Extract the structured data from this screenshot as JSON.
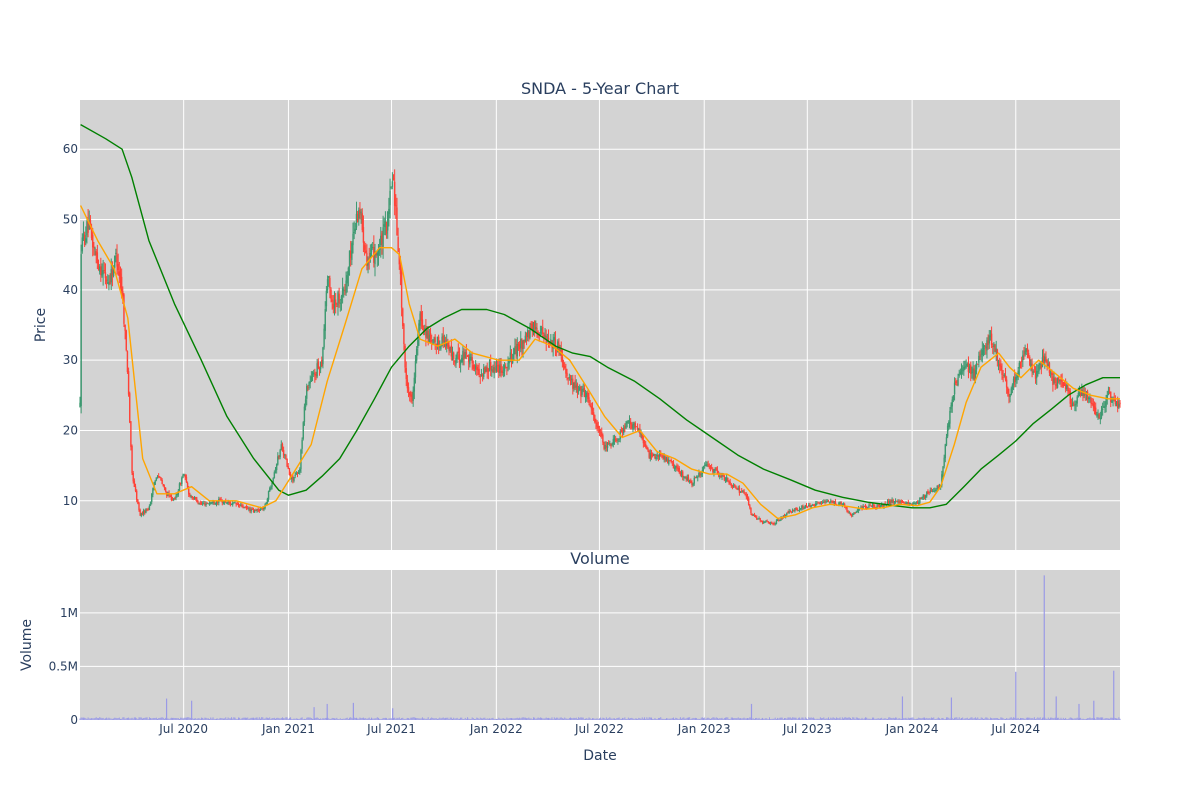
{
  "chart_data": [
    {
      "type": "candlestick",
      "title": "SNDA - 5-Year Chart",
      "ylabel": "Price",
      "ylim": [
        3,
        67
      ],
      "y_ticks": [
        10,
        20,
        30,
        40,
        50,
        60
      ],
      "grid": true,
      "background": "#d3d3d3",
      "colors": {
        "up": "#3d9970",
        "down": "#ff4136",
        "ma_short": "#ffa500",
        "ma_long": "#008000"
      },
      "x_range": [
        "2020-01-01",
        "2024-12-31"
      ],
      "price_path": [
        [
          "2020-01-02",
          46
        ],
        [
          "2020-01-15",
          49
        ],
        [
          "2020-02-01",
          44
        ],
        [
          "2020-02-20",
          41
        ],
        [
          "2020-03-05",
          45
        ],
        [
          "2020-03-15",
          40
        ],
        [
          "2020-03-25",
          28
        ],
        [
          "2020-04-01",
          14
        ],
        [
          "2020-04-15",
          8
        ],
        [
          "2020-05-01",
          9
        ],
        [
          "2020-05-15",
          14
        ],
        [
          "2020-06-01",
          11
        ],
        [
          "2020-06-15",
          10
        ],
        [
          "2020-07-01",
          14
        ],
        [
          "2020-07-10",
          11
        ],
        [
          "2020-08-01",
          9.5
        ],
        [
          "2020-09-01",
          10
        ],
        [
          "2020-10-01",
          9.5
        ],
        [
          "2020-11-01",
          8.5
        ],
        [
          "2020-11-20",
          9
        ],
        [
          "2020-12-10",
          15
        ],
        [
          "2020-12-20",
          18
        ],
        [
          "2021-01-05",
          13
        ],
        [
          "2021-01-20",
          14
        ],
        [
          "2021-02-01",
          26
        ],
        [
          "2021-02-15",
          28
        ],
        [
          "2021-03-01",
          30
        ],
        [
          "2021-03-10",
          42
        ],
        [
          "2021-03-20",
          38
        ],
        [
          "2021-04-10",
          40
        ],
        [
          "2021-04-25",
          48
        ],
        [
          "2021-05-05",
          52
        ],
        [
          "2021-05-20",
          44
        ],
        [
          "2021-06-10",
          46
        ],
        [
          "2021-06-25",
          50
        ],
        [
          "2021-07-03",
          57
        ],
        [
          "2021-07-15",
          44
        ],
        [
          "2021-07-25",
          28
        ],
        [
          "2021-08-05",
          24
        ],
        [
          "2021-08-20",
          36
        ],
        [
          "2021-09-10",
          32
        ],
        [
          "2021-10-01",
          33
        ],
        [
          "2021-10-20",
          30
        ],
        [
          "2021-11-10",
          31
        ],
        [
          "2021-12-01",
          28
        ],
        [
          "2021-12-20",
          29
        ],
        [
          "2022-01-15",
          29
        ],
        [
          "2022-02-01",
          31
        ],
        [
          "2022-02-20",
          33
        ],
        [
          "2022-03-10",
          35
        ],
        [
          "2022-04-01",
          33
        ],
        [
          "2022-04-20",
          32
        ],
        [
          "2022-05-05",
          28
        ],
        [
          "2022-05-20",
          26
        ],
        [
          "2022-06-10",
          25
        ],
        [
          "2022-06-25",
          21
        ],
        [
          "2022-07-10",
          17.5
        ],
        [
          "2022-08-01",
          19
        ],
        [
          "2022-08-20",
          21
        ],
        [
          "2022-09-10",
          20
        ],
        [
          "2022-09-25",
          16.5
        ],
        [
          "2022-10-15",
          16.5
        ],
        [
          "2022-11-01",
          15.5
        ],
        [
          "2022-11-20",
          14
        ],
        [
          "2022-12-10",
          12.5
        ],
        [
          "2023-01-05",
          15
        ],
        [
          "2023-01-25",
          14
        ],
        [
          "2023-02-10",
          13
        ],
        [
          "2023-03-01",
          11.5
        ],
        [
          "2023-03-15",
          11
        ],
        [
          "2023-03-25",
          8
        ],
        [
          "2023-04-15",
          7
        ],
        [
          "2023-05-05",
          6.8
        ],
        [
          "2023-06-01",
          8.5
        ],
        [
          "2023-06-20",
          9
        ],
        [
          "2023-07-15",
          9.5
        ],
        [
          "2023-08-10",
          9.8
        ],
        [
          "2023-09-01",
          9.5
        ],
        [
          "2023-09-15",
          8
        ],
        [
          "2023-10-01",
          9
        ],
        [
          "2023-11-01",
          9.2
        ],
        [
          "2023-12-01",
          10
        ],
        [
          "2023-12-20",
          9.5
        ],
        [
          "2024-01-10",
          9.8
        ],
        [
          "2024-02-01",
          11.5
        ],
        [
          "2024-02-20",
          12
        ],
        [
          "2024-03-01",
          19
        ],
        [
          "2024-03-15",
          26
        ],
        [
          "2024-04-01",
          29
        ],
        [
          "2024-04-20",
          28
        ],
        [
          "2024-05-05",
          32
        ],
        [
          "2024-05-20",
          33
        ],
        [
          "2024-06-05",
          29
        ],
        [
          "2024-06-20",
          25
        ],
        [
          "2024-07-05",
          29
        ],
        [
          "2024-07-20",
          31
        ],
        [
          "2024-08-05",
          28
        ],
        [
          "2024-08-20",
          30
        ],
        [
          "2024-09-05",
          27
        ],
        [
          "2024-09-25",
          27
        ],
        [
          "2024-10-10",
          23
        ],
        [
          "2024-10-25",
          26
        ],
        [
          "2024-11-10",
          24
        ],
        [
          "2024-11-25",
          22
        ],
        [
          "2024-12-10",
          25
        ],
        [
          "2024-12-31",
          23.5
        ]
      ],
      "ma_short_path": [
        [
          "2020-01-02",
          52
        ],
        [
          "2020-02-01",
          47
        ],
        [
          "2020-03-01",
          43
        ],
        [
          "2020-03-25",
          36
        ],
        [
          "2020-04-20",
          16
        ],
        [
          "2020-05-15",
          11
        ],
        [
          "2020-06-15",
          11
        ],
        [
          "2020-07-15",
          12
        ],
        [
          "2020-08-15",
          10
        ],
        [
          "2020-10-01",
          10
        ],
        [
          "2020-11-15",
          9
        ],
        [
          "2020-12-10",
          10
        ],
        [
          "2021-01-10",
          14
        ],
        [
          "2021-02-10",
          18
        ],
        [
          "2021-03-10",
          27
        ],
        [
          "2021-04-10",
          35
        ],
        [
          "2021-05-10",
          43
        ],
        [
          "2021-06-10",
          46
        ],
        [
          "2021-07-01",
          46
        ],
        [
          "2021-07-15",
          45
        ],
        [
          "2021-08-01",
          38
        ],
        [
          "2021-08-20",
          33
        ],
        [
          "2021-09-20",
          32
        ],
        [
          "2021-10-20",
          33
        ],
        [
          "2021-11-20",
          31
        ],
        [
          "2022-01-05",
          30
        ],
        [
          "2022-02-10",
          30
        ],
        [
          "2022-03-10",
          33
        ],
        [
          "2022-04-10",
          32
        ],
        [
          "2022-05-10",
          30
        ],
        [
          "2022-06-10",
          26
        ],
        [
          "2022-07-10",
          22
        ],
        [
          "2022-08-10",
          19
        ],
        [
          "2022-09-10",
          20
        ],
        [
          "2022-10-10",
          17
        ],
        [
          "2022-11-10",
          16
        ],
        [
          "2022-12-10",
          14.5
        ],
        [
          "2023-01-10",
          13.8
        ],
        [
          "2023-02-10",
          13.8
        ],
        [
          "2023-03-10",
          12.5
        ],
        [
          "2023-04-10",
          9.5
        ],
        [
          "2023-05-10",
          7.5
        ],
        [
          "2023-06-10",
          8
        ],
        [
          "2023-07-10",
          9
        ],
        [
          "2023-08-10",
          9.5
        ],
        [
          "2023-09-10",
          9.2
        ],
        [
          "2023-10-10",
          8.8
        ],
        [
          "2023-11-10",
          9
        ],
        [
          "2023-12-10",
          9.5
        ],
        [
          "2024-01-10",
          9.3
        ],
        [
          "2024-02-01",
          9.8
        ],
        [
          "2024-02-20",
          12
        ],
        [
          "2024-03-15",
          18
        ],
        [
          "2024-04-05",
          24
        ],
        [
          "2024-05-01",
          29
        ],
        [
          "2024-06-01",
          31
        ],
        [
          "2024-06-20",
          29
        ],
        [
          "2024-07-10",
          27.5
        ],
        [
          "2024-08-10",
          30
        ],
        [
          "2024-09-10",
          28
        ],
        [
          "2024-10-10",
          26
        ],
        [
          "2024-11-10",
          25
        ],
        [
          "2024-12-10",
          24.5
        ],
        [
          "2024-12-31",
          24.5
        ]
      ],
      "ma_long_path": [
        [
          "2020-01-02",
          63.5
        ],
        [
          "2020-02-15",
          61.5
        ],
        [
          "2020-03-15",
          60
        ],
        [
          "2020-04-01",
          56
        ],
        [
          "2020-05-01",
          47
        ],
        [
          "2020-06-15",
          38
        ],
        [
          "2020-08-01",
          30
        ],
        [
          "2020-09-15",
          22
        ],
        [
          "2020-11-01",
          16
        ],
        [
          "2020-12-15",
          11.5
        ],
        [
          "2021-01-01",
          10.8
        ],
        [
          "2021-02-01",
          11.5
        ],
        [
          "2021-03-01",
          13.5
        ],
        [
          "2021-04-01",
          16
        ],
        [
          "2021-05-01",
          20
        ],
        [
          "2021-06-01",
          24.5
        ],
        [
          "2021-07-01",
          29
        ],
        [
          "2021-08-01",
          32
        ],
        [
          "2021-09-01",
          34.5
        ],
        [
          "2021-10-01",
          36
        ],
        [
          "2021-11-01",
          37.2
        ],
        [
          "2021-12-15",
          37.2
        ],
        [
          "2022-01-15",
          36.5
        ],
        [
          "2022-03-01",
          34.5
        ],
        [
          "2022-04-15",
          32
        ],
        [
          "2022-05-15",
          31
        ],
        [
          "2022-06-15",
          30.5
        ],
        [
          "2022-07-15",
          29
        ],
        [
          "2022-09-01",
          27
        ],
        [
          "2022-10-15",
          24.5
        ],
        [
          "2022-12-01",
          21.5
        ],
        [
          "2023-01-15",
          19
        ],
        [
          "2023-03-01",
          16.5
        ],
        [
          "2023-04-15",
          14.5
        ],
        [
          "2023-06-01",
          13
        ],
        [
          "2023-07-15",
          11.5
        ],
        [
          "2023-09-01",
          10.5
        ],
        [
          "2023-10-15",
          9.8
        ],
        [
          "2023-12-01",
          9.3
        ],
        [
          "2024-01-01",
          9
        ],
        [
          "2024-02-01",
          9
        ],
        [
          "2024-03-01",
          9.5
        ],
        [
          "2024-04-01",
          12
        ],
        [
          "2024-05-01",
          14.5
        ],
        [
          "2024-06-01",
          16.5
        ],
        [
          "2024-07-01",
          18.5
        ],
        [
          "2024-08-01",
          21
        ],
        [
          "2024-09-01",
          23
        ],
        [
          "2024-10-01",
          25
        ],
        [
          "2024-11-01",
          26.5
        ],
        [
          "2024-12-01",
          27.5
        ],
        [
          "2024-12-31",
          27.5
        ]
      ]
    },
    {
      "type": "bar",
      "title": "Volume",
      "ylabel": "Volume",
      "xlabel": "Date",
      "ylim": [
        0,
        1400000
      ],
      "y_ticks": [
        0,
        500000,
        1000000
      ],
      "y_tick_labels": [
        "0",
        "0.5M",
        "1M"
      ],
      "x_ticks": [
        "2020-07-01",
        "2021-01-01",
        "2021-07-01",
        "2022-01-01",
        "2022-07-01",
        "2023-01-01",
        "2023-07-01",
        "2024-01-01",
        "2024-07-01"
      ],
      "x_tick_labels": [
        "Jul 2020",
        "Jan 2021",
        "Jul 2021",
        "Jan 2022",
        "Jul 2022",
        "Jan 2023",
        "Jul 2023",
        "Jan 2024",
        "Jul 2024"
      ],
      "grid": true,
      "background": "#d3d3d3",
      "bar_color": "#9a9ae6",
      "baseline_volume": 20000,
      "spikes": [
        [
          "2020-06-01",
          200000
        ],
        [
          "2020-07-15",
          180000
        ],
        [
          "2021-02-15",
          120000
        ],
        [
          "2021-03-10",
          150000
        ],
        [
          "2021-04-25",
          160000
        ],
        [
          "2021-07-03",
          110000
        ],
        [
          "2023-03-25",
          150000
        ],
        [
          "2023-12-15",
          220000
        ],
        [
          "2024-03-10",
          210000
        ],
        [
          "2024-07-01",
          450000
        ],
        [
          "2024-08-20",
          1350000
        ],
        [
          "2024-09-10",
          220000
        ],
        [
          "2024-10-20",
          150000
        ],
        [
          "2024-11-15",
          180000
        ],
        [
          "2024-12-20",
          460000
        ]
      ]
    }
  ]
}
